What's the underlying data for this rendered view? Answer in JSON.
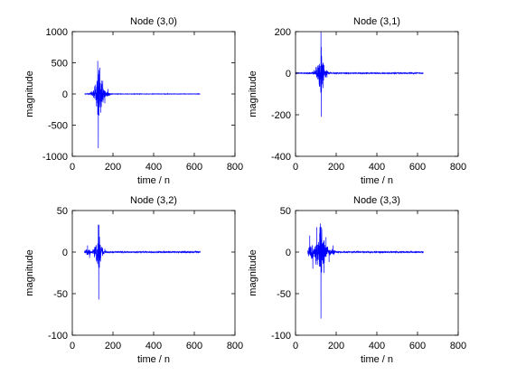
{
  "figure": {
    "background": "#ffffff",
    "axes_color": "#000000",
    "line_color": "#0000ff"
  },
  "chart_data": [
    {
      "type": "line",
      "title": "Node (3,0)",
      "xlabel": "time / n",
      "ylabel": "magnitude",
      "xlim": [
        0,
        800
      ],
      "ylim": [
        -1000,
        1000
      ],
      "xticks": [
        0,
        200,
        400,
        600,
        800
      ],
      "yticks": [
        -1000,
        -500,
        0,
        500,
        1000
      ],
      "grid": false,
      "signal": {
        "x_range": [
          60,
          630
        ],
        "baseline_amplitude": 3,
        "events": [
          {
            "x": 125,
            "y": 530
          },
          {
            "x": 128,
            "y": -870
          },
          {
            "x": 135,
            "y": 420
          },
          {
            "x": 140,
            "y": -300
          },
          {
            "x": 150,
            "y": 210
          },
          {
            "x": 160,
            "y": -150
          },
          {
            "x": 175,
            "y": 80
          },
          {
            "x": 95,
            "y": 40
          },
          {
            "x": 110,
            "y": -60
          }
        ]
      }
    },
    {
      "type": "line",
      "title": "Node (3,1)",
      "xlabel": "time / n",
      "ylabel": "magnitude",
      "xlim": [
        0,
        800
      ],
      "ylim": [
        -400,
        200
      ],
      "xticks": [
        0,
        200,
        400,
        600,
        800
      ],
      "yticks": [
        -400,
        -200,
        0,
        200
      ],
      "grid": false,
      "signal": {
        "x_range": [
          0,
          630
        ],
        "baseline_amplitude": 2,
        "events": [
          {
            "x": 125,
            "y": 200
          },
          {
            "x": 127,
            "y": -210
          },
          {
            "x": 100,
            "y": 30
          },
          {
            "x": 110,
            "y": -30
          },
          {
            "x": 140,
            "y": 25
          },
          {
            "x": 155,
            "y": -20
          },
          {
            "x": 90,
            "y": 15
          }
        ]
      }
    },
    {
      "type": "line",
      "title": "Node (3,2)",
      "xlabel": "time / n",
      "ylabel": "magnitude",
      "xlim": [
        0,
        800
      ],
      "ylim": [
        -100,
        50
      ],
      "xticks": [
        0,
        200,
        400,
        600,
        800
      ],
      "yticks": [
        -100,
        -50,
        0,
        50
      ],
      "grid": false,
      "signal": {
        "x_range": [
          60,
          630
        ],
        "baseline_amplitude": 0.7,
        "events": [
          {
            "x": 128,
            "y": 33
          },
          {
            "x": 130,
            "y": -57
          },
          {
            "x": 75,
            "y": 8
          },
          {
            "x": 85,
            "y": -7
          },
          {
            "x": 110,
            "y": 6
          },
          {
            "x": 140,
            "y": -6
          },
          {
            "x": 160,
            "y": 4
          }
        ]
      }
    },
    {
      "type": "line",
      "title": "Node (3,3)",
      "xlabel": "time / n",
      "ylabel": "magnitude",
      "xlim": [
        0,
        800
      ],
      "ylim": [
        -100,
        50
      ],
      "xticks": [
        0,
        200,
        400,
        600,
        800
      ],
      "yticks": [
        -100,
        -50,
        0,
        50
      ],
      "grid": false,
      "signal": {
        "x_range": [
          60,
          630
        ],
        "baseline_amplitude": 0.7,
        "events": [
          {
            "x": 70,
            "y": 20
          },
          {
            "x": 85,
            "y": -20
          },
          {
            "x": 105,
            "y": 30
          },
          {
            "x": 120,
            "y": 30
          },
          {
            "x": 125,
            "y": -80
          },
          {
            "x": 140,
            "y": -25
          },
          {
            "x": 150,
            "y": 18
          },
          {
            "x": 165,
            "y": -12
          },
          {
            "x": 185,
            "y": 8
          },
          {
            "x": 100,
            "y": -15
          }
        ]
      }
    }
  ]
}
